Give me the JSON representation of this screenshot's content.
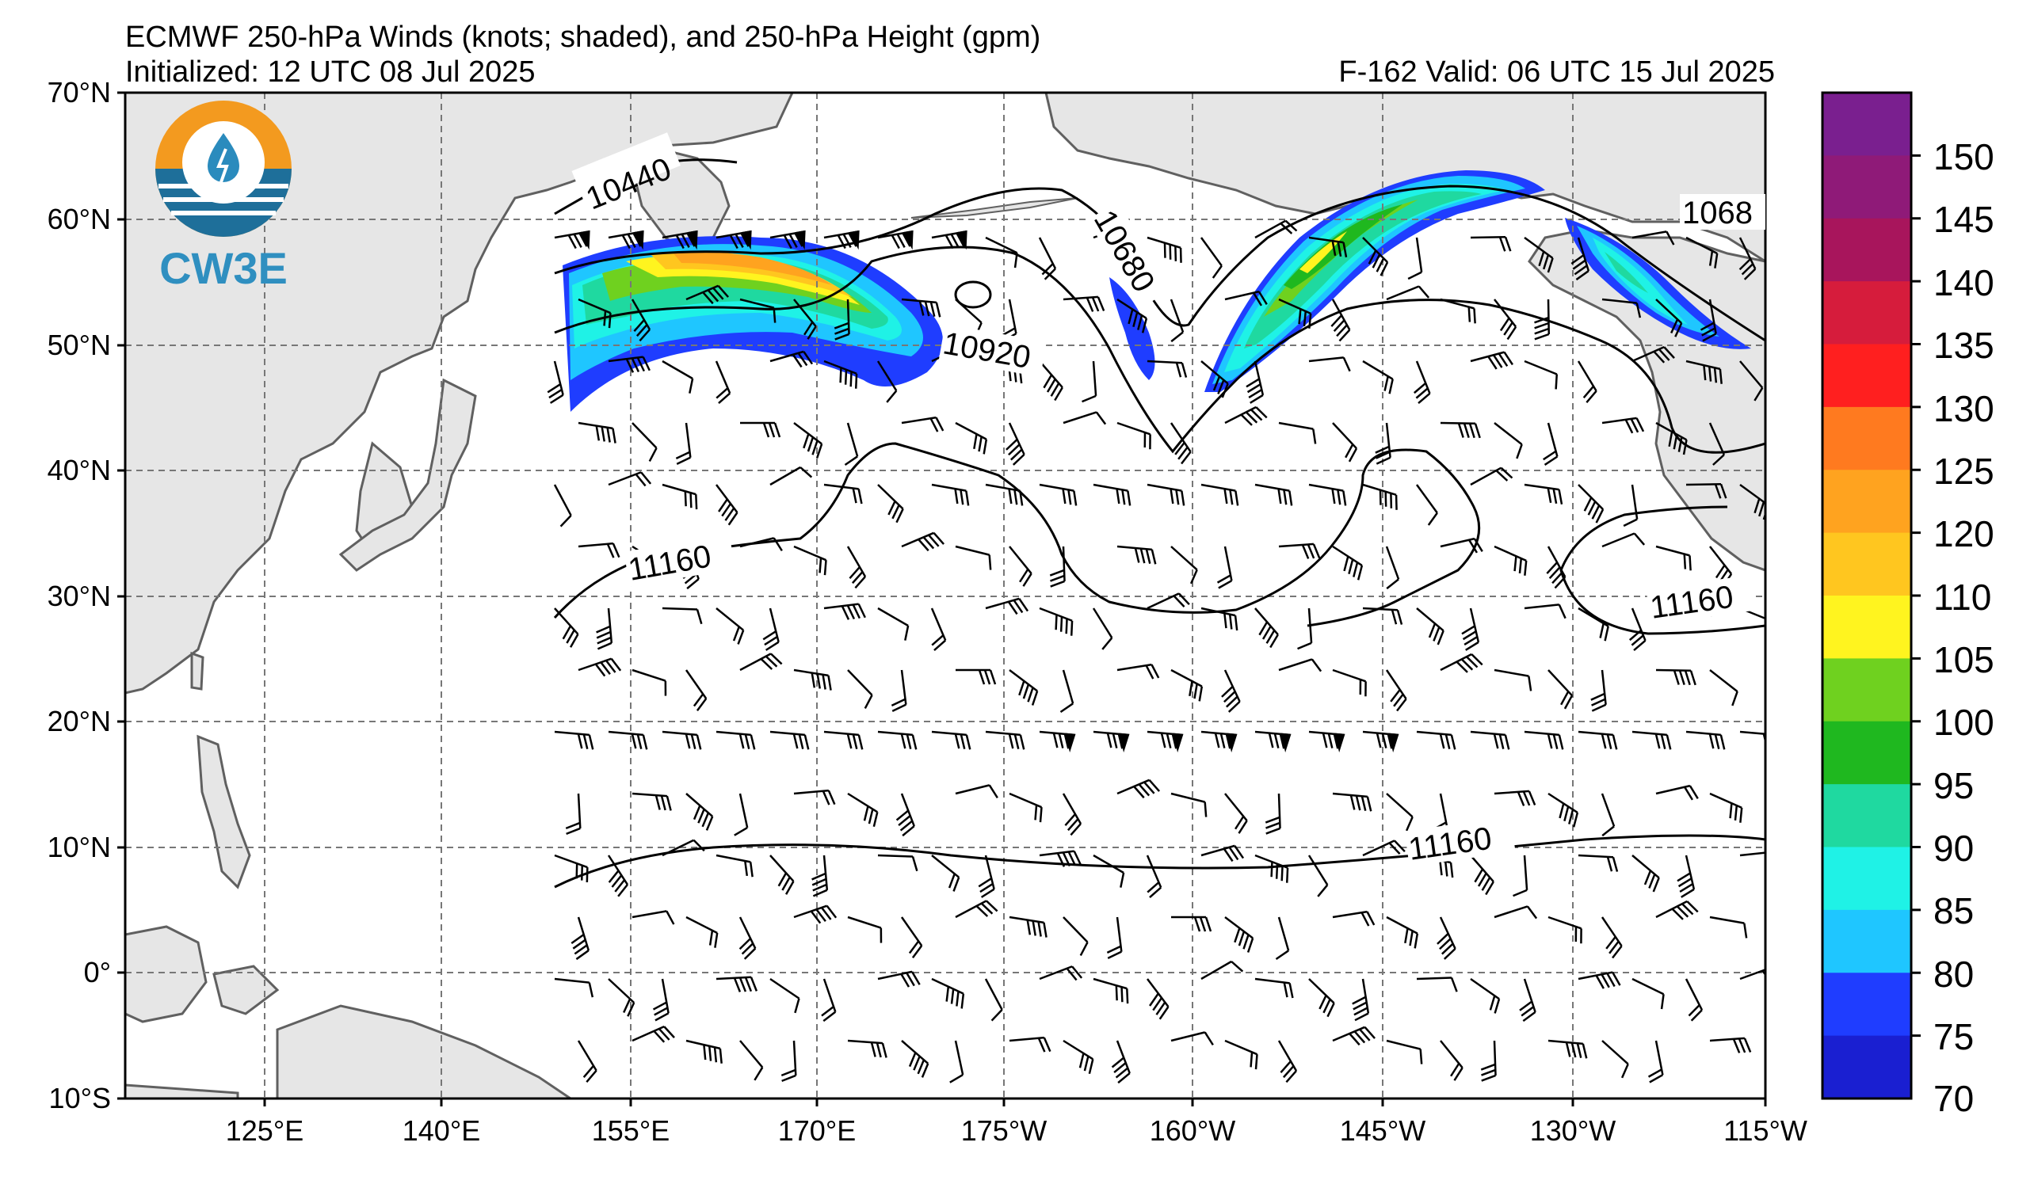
{
  "header": {
    "title": "ECMWF 250-hPa Winds (knots; shaded), and 250-hPa Height (gpm)",
    "initialized": "Initialized: 12 UTC 08 Jul 2025",
    "valid": "F-162  Valid: 06 UTC 15 Jul 2025"
  },
  "logo": {
    "text": "CW3E"
  },
  "axes": {
    "lat_labels": [
      "70°N",
      "60°N",
      "50°N",
      "40°N",
      "30°N",
      "20°N",
      "10°N",
      "0°",
      "10°S"
    ],
    "lon_labels": [
      "125°E",
      "140°E",
      "155°E",
      "170°E",
      "175°W",
      "160°W",
      "145°W",
      "130°W",
      "115°W"
    ]
  },
  "colorbar": {
    "ticks": [
      "150",
      "145",
      "140",
      "135",
      "130",
      "125",
      "120",
      "110",
      "105",
      "100",
      "95",
      "90",
      "85",
      "80",
      "75",
      "70"
    ],
    "colors_top_to_bottom": [
      "#7a1f8f",
      "#8f1a78",
      "#a8155c",
      "#d61c3c",
      "#ff1f1f",
      "#ff7a1f",
      "#ffa31f",
      "#ffc61f",
      "#fff41f",
      "#6fd11f",
      "#1fb81f",
      "#1fd9a0",
      "#1ff2e6",
      "#1fc6ff",
      "#1f3dff",
      "#1a1fd1"
    ]
  },
  "contour_labels": {
    "l1": "10440",
    "l2": "10680",
    "l3": "10920",
    "l4": "11160",
    "l5": "11160",
    "l6": "11160",
    "l7": "1068"
  },
  "colors": {
    "land": "#e6e6e6",
    "grid": "#777777",
    "coast": "#606060"
  }
}
